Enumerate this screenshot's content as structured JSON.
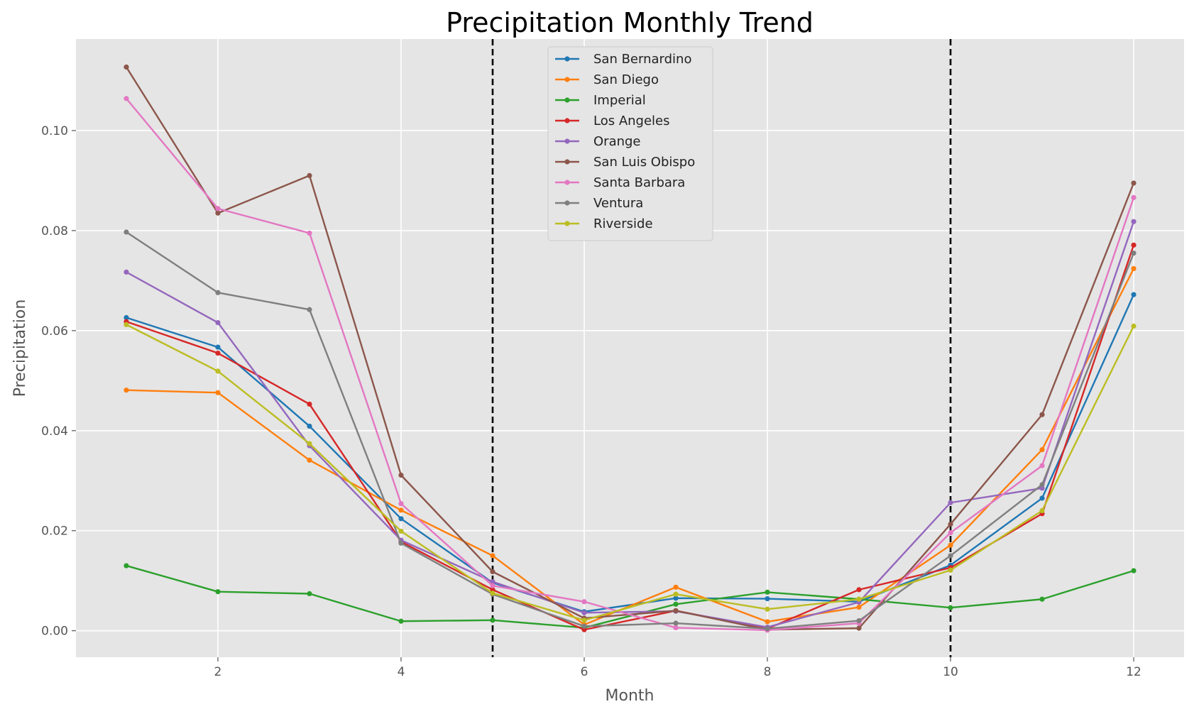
{
  "chart_data": {
    "type": "line",
    "title": "Precipitation Monthly Trend",
    "xlabel": "Month",
    "ylabel": "Precipitation",
    "xlim": [
      0.45,
      12.55
    ],
    "ylim": [
      -0.0053,
      0.1183
    ],
    "xticks": [
      2,
      4,
      6,
      8,
      10,
      12
    ],
    "yticks": [
      0.0,
      0.02,
      0.04,
      0.06,
      0.08,
      0.1
    ],
    "ytick_labels": [
      "0.00",
      "0.02",
      "0.04",
      "0.06",
      "0.08",
      "0.10"
    ],
    "grid": true,
    "legend_position": "top-center",
    "vlines": [
      5,
      10
    ],
    "x": [
      1,
      2,
      3,
      4,
      5,
      6,
      7,
      8,
      9,
      10,
      11,
      12
    ],
    "series": [
      {
        "name": "San Bernardino",
        "color": "#1f77b4",
        "values": [
          0.0626,
          0.0567,
          0.0409,
          0.0224,
          0.0096,
          0.0038,
          0.0065,
          0.0064,
          0.0058,
          0.0131,
          0.0265,
          0.0672
        ]
      },
      {
        "name": "San Diego",
        "color": "#ff7f0e",
        "values": [
          0.0481,
          0.0476,
          0.0341,
          0.0241,
          0.015,
          0.0012,
          0.0087,
          0.0018,
          0.0047,
          0.0171,
          0.0362,
          0.0724
        ]
      },
      {
        "name": "Imperial",
        "color": "#2ca02c",
        "values": [
          0.013,
          0.0078,
          0.0074,
          0.0019,
          0.0021,
          0.0006,
          0.0053,
          0.0077,
          0.0063,
          0.0046,
          0.0063,
          0.012
        ]
      },
      {
        "name": "Los Angeles",
        "color": "#d62728",
        "values": [
          0.0618,
          0.0555,
          0.0453,
          0.0178,
          0.0082,
          0.0002,
          0.004,
          0.0004,
          0.0082,
          0.0126,
          0.0234,
          0.0771
        ]
      },
      {
        "name": "Orange",
        "color": "#9467bd",
        "values": [
          0.0717,
          0.0616,
          0.037,
          0.0181,
          0.0098,
          0.0036,
          0.0039,
          0.0007,
          0.0057,
          0.0256,
          0.0285,
          0.0818
        ]
      },
      {
        "name": "San Luis Obispo",
        "color": "#8c564b",
        "values": [
          0.1127,
          0.0835,
          0.091,
          0.0311,
          0.0118,
          0.0025,
          0.004,
          0.0002,
          0.0005,
          0.0213,
          0.0432,
          0.0895
        ]
      },
      {
        "name": "Santa Barbara",
        "color": "#e377c2",
        "values": [
          0.1064,
          0.0844,
          0.0795,
          0.0254,
          0.009,
          0.0058,
          0.0006,
          0.0001,
          0.0015,
          0.0196,
          0.033,
          0.0866
        ]
      },
      {
        "name": "Ventura",
        "color": "#7f7f7f",
        "values": [
          0.0797,
          0.0676,
          0.0642,
          0.0175,
          0.0073,
          0.0009,
          0.0015,
          0.0004,
          0.002,
          0.015,
          0.0292,
          0.0755
        ]
      },
      {
        "name": "Riverside",
        "color": "#bcbd22",
        "values": [
          0.0612,
          0.0519,
          0.0374,
          0.0199,
          0.0075,
          0.0021,
          0.0073,
          0.0043,
          0.0063,
          0.0121,
          0.024,
          0.0609
        ]
      }
    ]
  }
}
